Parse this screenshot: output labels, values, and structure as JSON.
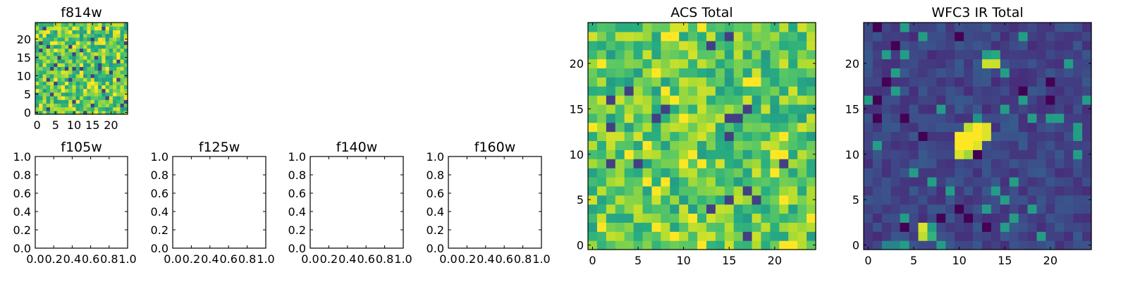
{
  "colormap": {
    "name": "viridis",
    "stops": [
      "#440154",
      "#472d7b",
      "#3b528b",
      "#2c728e",
      "#21918c",
      "#28ae80",
      "#5ec962",
      "#addc30",
      "#fde725"
    ]
  },
  "chart_data": [
    {
      "id": "f814w",
      "type": "heatmap",
      "title": "f814w",
      "size": 25,
      "xlim": [
        -0.5,
        24.5
      ],
      "ylim": [
        -0.5,
        24.5
      ],
      "xticks": [
        0,
        5,
        10,
        15,
        20
      ],
      "yticks": [
        0,
        5,
        10,
        15,
        20
      ],
      "tick_labels_x": [
        "0",
        "5",
        "10",
        "15",
        "20"
      ],
      "tick_labels_y": [
        "0",
        "5",
        "10",
        "15",
        "20"
      ],
      "pattern": "noise",
      "value_range": [
        0.0,
        1.0
      ],
      "noise_mean": 0.75,
      "noise_spread": 0.22,
      "seed": 814,
      "note": "pixel values approximate; visually uniform noise (mostly green/yellow)"
    },
    {
      "id": "f105w",
      "type": "empty",
      "title": "f105w",
      "xlim": [
        0.0,
        1.0
      ],
      "ylim": [
        0.0,
        1.0
      ],
      "ticks": [
        0.0,
        0.2,
        0.4,
        0.6,
        0.8,
        1.0
      ],
      "tick_labels_x": [
        "0.0",
        "0.2",
        "0.4",
        "0.6",
        "0.8",
        "1.0"
      ],
      "tick_labels_y": [
        "0.0",
        "0.2",
        "0.4",
        "0.6",
        "0.8",
        "1.0"
      ]
    },
    {
      "id": "f125w",
      "type": "empty",
      "title": "f125w",
      "xlim": [
        0.0,
        1.0
      ],
      "ylim": [
        0.0,
        1.0
      ],
      "ticks": [
        0.0,
        0.2,
        0.4,
        0.6,
        0.8,
        1.0
      ],
      "tick_labels_x": [
        "0.0",
        "0.2",
        "0.4",
        "0.6",
        "0.8",
        "1.0"
      ],
      "tick_labels_y": [
        "0.0",
        "0.2",
        "0.4",
        "0.6",
        "0.8",
        "1.0"
      ]
    },
    {
      "id": "f140w",
      "type": "empty",
      "title": "f140w",
      "xlim": [
        0.0,
        1.0
      ],
      "ylim": [
        0.0,
        1.0
      ],
      "ticks": [
        0.0,
        0.2,
        0.4,
        0.6,
        0.8,
        1.0
      ],
      "tick_labels_x": [
        "0.0",
        "0.2",
        "0.4",
        "0.6",
        "0.8",
        "1.0"
      ],
      "tick_labels_y": [
        "0.0",
        "0.2",
        "0.4",
        "0.6",
        "0.8",
        "1.0"
      ]
    },
    {
      "id": "f160w",
      "type": "empty",
      "title": "f160w",
      "xlim": [
        0.0,
        1.0
      ],
      "ylim": [
        0.0,
        1.0
      ],
      "ticks": [
        0.0,
        0.2,
        0.4,
        0.6,
        0.8,
        1.0
      ],
      "tick_labels_x": [
        "0.0",
        "0.2",
        "0.4",
        "0.6",
        "0.8",
        "1.0"
      ],
      "tick_labels_y": [
        "0.0",
        "0.2",
        "0.4",
        "0.6",
        "0.8",
        "1.0"
      ]
    },
    {
      "id": "acs",
      "type": "heatmap",
      "title": "ACS Total",
      "size": 25,
      "xlim": [
        -0.5,
        24.5
      ],
      "ylim": [
        -0.5,
        24.5
      ],
      "xticks": [
        0,
        5,
        10,
        15,
        20
      ],
      "yticks": [
        0,
        5,
        10,
        15,
        20
      ],
      "tick_labels_x": [
        "0",
        "5",
        "10",
        "15",
        "20"
      ],
      "tick_labels_y": [
        "0",
        "5",
        "10",
        "15",
        "20"
      ],
      "pattern": "noise",
      "value_range": [
        0.0,
        1.0
      ],
      "noise_mean": 0.74,
      "noise_spread": 0.2,
      "seed": 1337,
      "note": "pixel values approximate; noise field with scattered dark pixels"
    },
    {
      "id": "wfc3",
      "type": "heatmap",
      "title": "WFC3 IR Total",
      "size": 25,
      "xlim": [
        -0.5,
        24.5
      ],
      "ylim": [
        -0.5,
        24.5
      ],
      "xticks": [
        0,
        5,
        10,
        15,
        20
      ],
      "yticks": [
        0,
        5,
        10,
        15,
        20
      ],
      "tick_labels_x": [
        "0",
        "5",
        "10",
        "15",
        "20"
      ],
      "tick_labels_y": [
        "0",
        "5",
        "10",
        "15",
        "20"
      ],
      "pattern": "noise_with_sources",
      "value_range": [
        0.0,
        1.0
      ],
      "noise_mean": 0.2,
      "noise_spread": 0.08,
      "seed": 42,
      "bright_pixels": [
        {
          "x": 10,
          "y": 10,
          "v": 0.95
        },
        {
          "x": 11,
          "y": 10,
          "v": 0.85
        },
        {
          "x": 10,
          "y": 11,
          "v": 1.0
        },
        {
          "x": 11,
          "y": 11,
          "v": 1.0
        },
        {
          "x": 12,
          "y": 11,
          "v": 0.95
        },
        {
          "x": 10,
          "y": 12,
          "v": 1.0
        },
        {
          "x": 11,
          "y": 12,
          "v": 1.0
        },
        {
          "x": 12,
          "y": 12,
          "v": 1.0
        },
        {
          "x": 13,
          "y": 12,
          "v": 0.95
        },
        {
          "x": 11,
          "y": 13,
          "v": 0.9
        },
        {
          "x": 12,
          "y": 13,
          "v": 1.0
        },
        {
          "x": 13,
          "y": 13,
          "v": 0.95
        },
        {
          "x": 12,
          "y": 14,
          "v": 0.5
        },
        {
          "x": 13,
          "y": 20,
          "v": 0.92
        },
        {
          "x": 14,
          "y": 20,
          "v": 0.92
        },
        {
          "x": 14,
          "y": 21,
          "v": 0.6
        },
        {
          "x": 6,
          "y": 1,
          "v": 0.9
        },
        {
          "x": 6,
          "y": 2,
          "v": 0.95
        },
        {
          "x": 7,
          "y": 1,
          "v": 0.65
        },
        {
          "x": 7,
          "y": 2,
          "v": 0.55
        },
        {
          "x": 2,
          "y": -0.0,
          "v": 0.45
        },
        {
          "x": 3,
          "y": 0,
          "v": 0.45
        }
      ],
      "note": "pixel values approximate; dim background with a central bright source and two smaller sources"
    }
  ]
}
